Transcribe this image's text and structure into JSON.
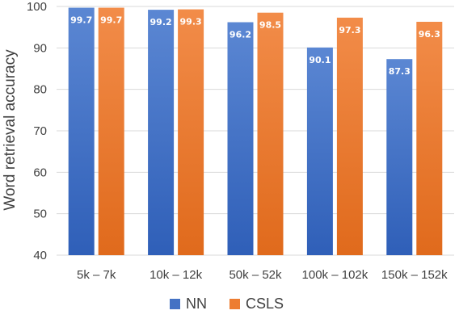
{
  "chart_data": {
    "type": "bar",
    "ylabel": "Word retrieval accuracy",
    "xlabel": "",
    "ylim": [
      40,
      100
    ],
    "yticks": [
      40,
      50,
      60,
      70,
      80,
      90,
      100
    ],
    "categories": [
      "5k – 7k",
      "10k – 12k",
      "50k – 52k",
      "100k – 102k",
      "150k – 152k"
    ],
    "series": [
      {
        "name": "NN",
        "values": [
          99.7,
          99.2,
          96.2,
          90.1,
          87.3
        ],
        "color": "#4472c4"
      },
      {
        "name": "CSLS",
        "values": [
          99.7,
          99.3,
          98.5,
          97.3,
          96.3
        ],
        "color": "#ed7d31"
      }
    ],
    "data_labels": [
      [
        "99.7",
        "99.2",
        "96.2",
        "90.1",
        "87.3"
      ],
      [
        "99.7",
        "99.3",
        "98.5",
        "97.3",
        "96.3"
      ]
    ],
    "grid": true,
    "legend": "bottom"
  }
}
